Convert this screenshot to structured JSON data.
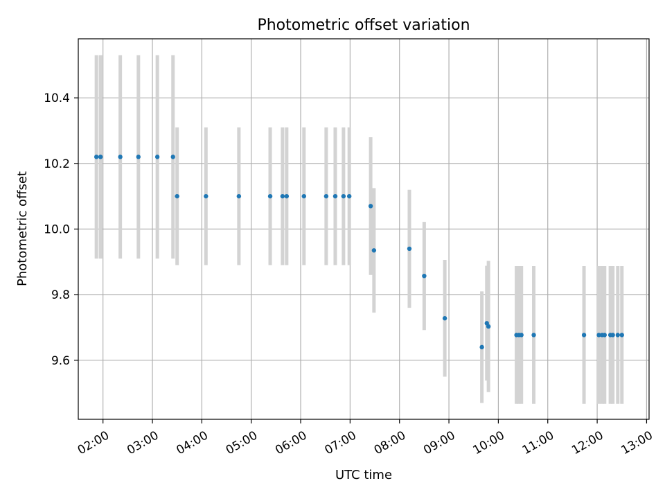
{
  "chart_data": {
    "type": "scatter",
    "title": "Photometric offset variation",
    "xlabel": "UTC time",
    "ylabel": "Photometric offset",
    "xlim": [
      "01:30",
      "13:03"
    ],
    "ylim": [
      9.42,
      10.58
    ],
    "x_ticks": [
      "02:00",
      "03:00",
      "04:00",
      "05:00",
      "06:00",
      "07:00",
      "08:00",
      "09:00",
      "10:00",
      "11:00",
      "12:00",
      "13:00"
    ],
    "y_ticks": [
      9.6,
      9.8,
      10.0,
      10.2,
      10.4
    ],
    "grid": true,
    "point_color": "#1f77b4",
    "errorbar_color": "#d3d3d3",
    "points": [
      {
        "x": "01:52",
        "y": 10.22,
        "err": 0.31
      },
      {
        "x": "01:57",
        "y": 10.22,
        "err": 0.31
      },
      {
        "x": "02:21",
        "y": 10.22,
        "err": 0.31
      },
      {
        "x": "02:43",
        "y": 10.22,
        "err": 0.31
      },
      {
        "x": "03:06",
        "y": 10.22,
        "err": 0.31
      },
      {
        "x": "03:25",
        "y": 10.22,
        "err": 0.31
      },
      {
        "x": "03:30",
        "y": 10.1,
        "err": 0.21
      },
      {
        "x": "04:05",
        "y": 10.1,
        "err": 0.21
      },
      {
        "x": "04:45",
        "y": 10.1,
        "err": 0.21
      },
      {
        "x": "05:23",
        "y": 10.1,
        "err": 0.21
      },
      {
        "x": "05:38",
        "y": 10.1,
        "err": 0.21
      },
      {
        "x": "05:43",
        "y": 10.1,
        "err": 0.21
      },
      {
        "x": "06:04",
        "y": 10.1,
        "err": 0.21
      },
      {
        "x": "06:31",
        "y": 10.1,
        "err": 0.21
      },
      {
        "x": "06:42",
        "y": 10.1,
        "err": 0.21
      },
      {
        "x": "06:52",
        "y": 10.1,
        "err": 0.21
      },
      {
        "x": "06:59",
        "y": 10.1,
        "err": 0.21
      },
      {
        "x": "07:25",
        "y": 10.07,
        "err": 0.21
      },
      {
        "x": "07:29",
        "y": 9.935,
        "err": 0.19
      },
      {
        "x": "08:12",
        "y": 9.94,
        "err": 0.18
      },
      {
        "x": "08:30",
        "y": 9.857,
        "err": 0.165
      },
      {
        "x": "08:55",
        "y": 9.728,
        "err": 0.178
      },
      {
        "x": "09:40",
        "y": 9.64,
        "err": 0.17
      },
      {
        "x": "09:46",
        "y": 9.713,
        "err": 0.175
      },
      {
        "x": "09:48",
        "y": 9.703,
        "err": 0.2
      },
      {
        "x": "10:22",
        "y": 9.677,
        "err": 0.21
      },
      {
        "x": "10:25",
        "y": 9.677,
        "err": 0.21
      },
      {
        "x": "10:28",
        "y": 9.677,
        "err": 0.21
      },
      {
        "x": "10:43",
        "y": 9.677,
        "err": 0.21
      },
      {
        "x": "11:44",
        "y": 9.677,
        "err": 0.21
      },
      {
        "x": "12:02",
        "y": 9.677,
        "err": 0.21
      },
      {
        "x": "12:06",
        "y": 9.677,
        "err": 0.21
      },
      {
        "x": "12:09",
        "y": 9.677,
        "err": 0.21
      },
      {
        "x": "12:16",
        "y": 9.677,
        "err": 0.21
      },
      {
        "x": "12:19",
        "y": 9.677,
        "err": 0.21
      },
      {
        "x": "12:25",
        "y": 9.677,
        "err": 0.21
      },
      {
        "x": "12:30",
        "y": 9.677,
        "err": 0.21
      }
    ]
  }
}
